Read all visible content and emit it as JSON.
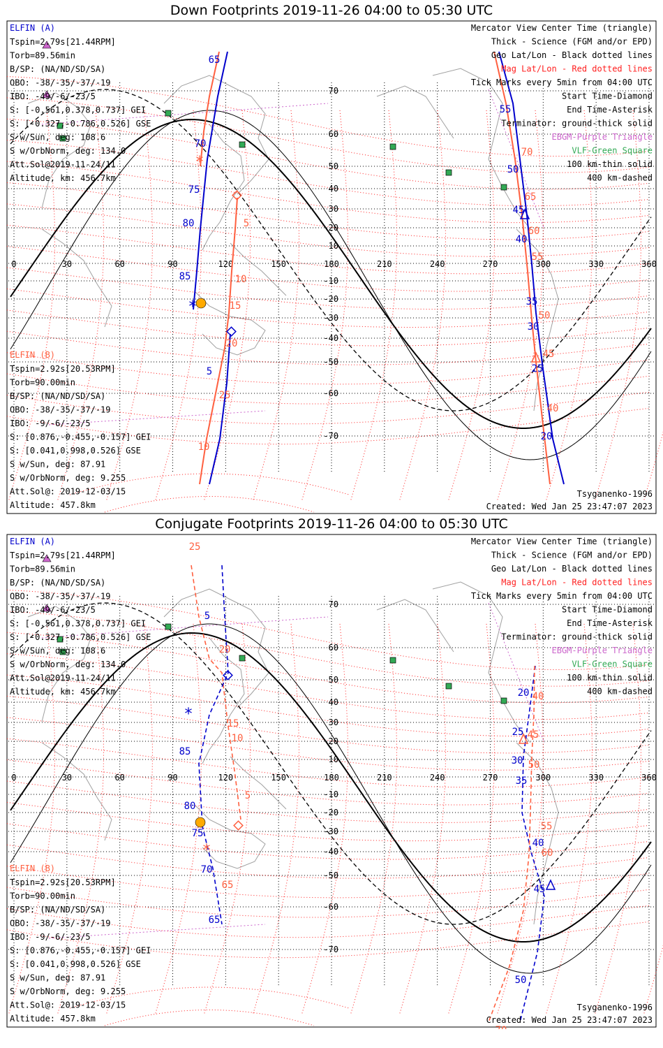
{
  "panels": [
    {
      "title": "Down Footprints 2019-11-26 04:00 to 05:30 UTC",
      "elfin_a": {
        "header": "ELFIN (A)",
        "lines": [
          "Tspin=2.79s[21.44RPM]",
          "Torb=89.56min",
          "B/SP: (NA/ND/SD/SA)",
          "OBO: -38/-35/-37/-19",
          "IBO: -49/-6/-23/5",
          "S: [-0.561,0.378,0.737] GEI",
          "S: [-0.327,-0.786,0.526] GSE",
          "S w/Sun, deg: 108.6",
          "S w/OrbNorm, deg: 134.0",
          "Att.Sol@2019-11-24/11",
          "Altitude, km: 456.7km"
        ]
      },
      "elfin_b": {
        "header": "ELFIN (B)",
        "lines": [
          "Tspin=2.92s[20.53RPM]",
          "Torb=90.00min",
          "B/SP: (NA/ND/SD/SA)",
          "OBO: -38/-35/-37/-19",
          "IBO: -9/-6/-23/5",
          "S: [0.876,-0.455,-0.157] GEI",
          "S: [0.041,0.998,0.526] GSE",
          "S w/Sun, deg: 87.91",
          "S w/OrbNorm, deg: 9.255",
          "Att.Sol@: 2019-12-03/15",
          "Altitude: 457.8km"
        ]
      },
      "legend": [
        "Mercator View Center Time (triangle)",
        "Thick - Science (FGM and/or EPD)",
        "Geo Lat/Lon - Black dotted lines",
        "Mag Lat/Lon - Red dotted lines",
        "Tick Marks every 5min from 04:00 UTC",
        "Start Time-Diamond",
        "End Time-Asterisk",
        "Terminator: ground-thick solid",
        "EBGM-Purple Triangle",
        "VLF-Green Square",
        "100 km-thin solid",
        "400 km-dashed"
      ],
      "model": "Tsyganenko-1996",
      "created": "Created: Wed Jan 25 23:47:07 2023",
      "tick_labels_a": [
        "65",
        "70",
        "75",
        "80",
        "85",
        "55",
        "50",
        "45",
        "40",
        "35",
        "30",
        "25",
        "20"
      ],
      "tick_labels_b": [
        "85",
        "5",
        "10",
        "15",
        "20",
        "25",
        "70",
        "65",
        "60",
        "55",
        "50",
        "45",
        "40",
        "10"
      ]
    },
    {
      "title": "Conjugate Footprints 2019-11-26 04:00 to 05:30 UTC",
      "elfin_a": {
        "header": "ELFIN (A)",
        "lines": [
          "Tspin=2.79s[21.44RPM]",
          "Torb=89.56min",
          "B/SP: (NA/ND/SD/SA)",
          "OBO: -38/-35/-37/-19",
          "IBO: -49/-6/-23/5",
          "S: [-0.561,0.378,0.737] GEI",
          "S: [-0.327,-0.786,0.526] GSE",
          "S w/Sun, deg: 108.6",
          "S w/OrbNorm, deg: 134.0",
          "Att.Sol@2019-11-24/11",
          "Altitude, km: 456.7km"
        ]
      },
      "elfin_b": {
        "header": "ELFIN (B)",
        "lines": [
          "Tspin=2.92s[20.53RPM]",
          "Torb=90.00min",
          "B/SP: (NA/ND/SD/SA)",
          "OBO: -38/-35/-37/-19",
          "IBO: -9/-6/-23/5",
          "S: [0.876,-0.455,-0.157] GEI",
          "S: [0.041,0.998,0.526] GSE",
          "S w/Sun, deg: 87.91",
          "S w/OrbNorm, deg: 9.255",
          "Att.Sol@: 2019-12-03/15",
          "Altitude: 457.8km"
        ]
      },
      "legend": [
        "Mercator View Center Time (triangle)",
        "Thick - Science (FGM and/or EPD)",
        "Geo Lat/Lon - Black dotted lines",
        "Mag Lat/Lon - Red dotted lines",
        "Tick Marks every 5min from 04:00 UTC",
        "Start Time-Diamond",
        "End Time-Asterisk",
        "Terminator: ground-thick solid",
        "EBGM-Purple Triangle",
        "VLF-Green Square",
        "100 km-thin solid",
        "400 km-dashed"
      ],
      "model": "Tsyganenko-1996",
      "created": "Created: Wed Jan 25 23:47:07 2023",
      "tick_labels_a": [
        "5",
        "85",
        "80",
        "75",
        "70",
        "65",
        "20",
        "25",
        "30",
        "35",
        "40",
        "45",
        "50"
      ],
      "tick_labels_b": [
        "25",
        "20",
        "15",
        "10",
        "5",
        "85",
        "65",
        "70",
        "40",
        "45",
        "50",
        "55",
        "60"
      ]
    }
  ],
  "map": {
    "lon_ticks": [
      "0",
      "30",
      "60",
      "90",
      "120",
      "150",
      "180",
      "210",
      "240",
      "270",
      "300",
      "330",
      "360"
    ],
    "lat_ticks": [
      "70",
      "60",
      "50",
      "40",
      "30",
      "20",
      "10",
      "-10",
      "-20",
      "-30",
      "-40",
      "-50",
      "-60",
      "-70"
    ]
  },
  "colors": {
    "elfin_a": "#0000cc",
    "elfin_b": "#ff6040",
    "mag_grid": "#ff2020",
    "geo_grid": "#000000",
    "ebgm": "#cc66cc",
    "vlf": "#33aa55",
    "coast": "#a0a0a0",
    "sun": "#ffaa00"
  }
}
